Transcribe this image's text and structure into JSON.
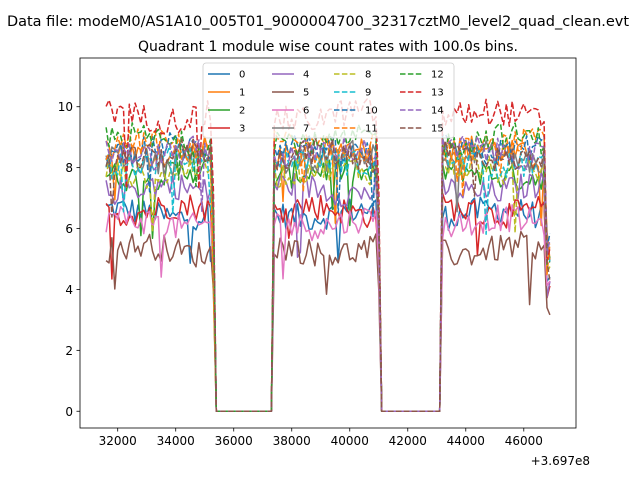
{
  "figure": {
    "suptitle": "Data file: modeM0/AS1A10_005T01_9000004700_32317cztM0_level2_quad_clean.evt",
    "title": "Quadrant 1 module wise count rates with 100.0s bins."
  },
  "chart_data": {
    "type": "line",
    "title": "Quadrant 1 module wise count rates with 100.0s bins.",
    "xlabel": "",
    "ylabel": "",
    "x_offset_label": "+3.697e8",
    "xlim": [
      30700,
      47800
    ],
    "ylim": [
      -0.55,
      11.6
    ],
    "xticks": [
      32000,
      34000,
      36000,
      38000,
      40000,
      42000,
      44000,
      46000
    ],
    "xtick_labels": [
      "32000",
      "34000",
      "36000",
      "38000",
      "40000",
      "42000",
      "44000",
      "46000"
    ],
    "yticks": [
      0,
      2,
      4,
      6,
      8,
      10
    ],
    "ytick_labels": [
      "0",
      "2",
      "4",
      "6",
      "8",
      "10"
    ],
    "grid": false,
    "legend_placement": "top-center",
    "legend_columns": 4,
    "time_bins": {
      "start": 31600,
      "end": 46900,
      "step": 100
    },
    "gaps": [
      [
        35400,
        37300
      ],
      [
        41100,
        43100
      ]
    ],
    "series": [
      {
        "name": "0",
        "color": "#1f77b4",
        "dash": "solid",
        "level": 6.5
      },
      {
        "name": "1",
        "color": "#ff7f0e",
        "dash": "solid",
        "level": 8.5
      },
      {
        "name": "2",
        "color": "#2ca02c",
        "dash": "solid",
        "level": 7.8
      },
      {
        "name": "3",
        "color": "#d62728",
        "dash": "solid",
        "level": 6.6
      },
      {
        "name": "4",
        "color": "#9467bd",
        "dash": "solid",
        "level": 7.3
      },
      {
        "name": "5",
        "color": "#8c564b",
        "dash": "solid",
        "level": 5.3
      },
      {
        "name": "6",
        "color": "#e377c2",
        "dash": "solid",
        "level": 6.2
      },
      {
        "name": "7",
        "color": "#7f7f7f",
        "dash": "solid",
        "level": 8.3
      },
      {
        "name": "8",
        "color": "#bcbd22",
        "dash": "dashed",
        "level": 7.9
      },
      {
        "name": "9",
        "color": "#17becf",
        "dash": "dashed",
        "level": 8.2
      },
      {
        "name": "10",
        "color": "#1f77b4",
        "dash": "dashed",
        "level": 8.6
      },
      {
        "name": "11",
        "color": "#ff7f0e",
        "dash": "dashed",
        "level": 8.7
      },
      {
        "name": "12",
        "color": "#2ca02c",
        "dash": "dashed",
        "level": 8.9
      },
      {
        "name": "13",
        "color": "#d62728",
        "dash": "dashed",
        "level": 9.7
      },
      {
        "name": "14",
        "color": "#9467bd",
        "dash": "dashed",
        "level": 8.5
      },
      {
        "name": "15",
        "color": "#8c564b",
        "dash": "dashed",
        "level": 8.4
      }
    ]
  }
}
